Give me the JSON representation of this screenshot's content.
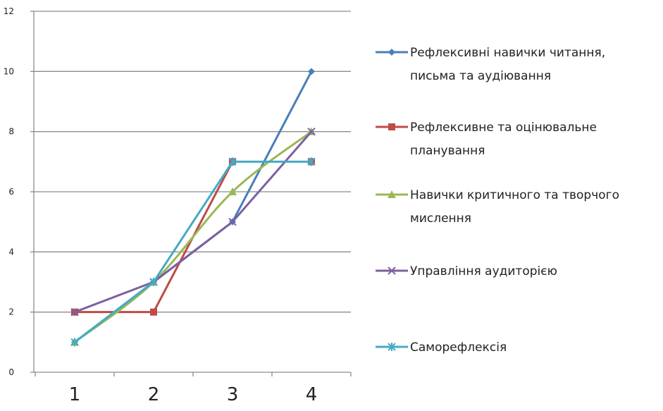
{
  "chart_data": {
    "type": "line",
    "title": "",
    "xlabel": "",
    "ylabel": "",
    "categories": [
      "1",
      "2",
      "3",
      "4"
    ],
    "ylim": [
      0,
      12
    ],
    "yticks": [
      "0",
      "2",
      "4",
      "6",
      "8",
      "10",
      "12"
    ],
    "grid": "horizontal",
    "legend_position": "right",
    "series": [
      {
        "name_lines": [
          "Рефлексивні навички читання,",
          "письма та аудіювання"
        ],
        "values": [
          1,
          3,
          5,
          10
        ],
        "color": "#4a7ebb",
        "marker": "diamond",
        "smooth": false
      },
      {
        "name_lines": [
          "Рефлексивне та оцінювальне",
          "планування"
        ],
        "values": [
          2,
          2,
          7,
          7
        ],
        "color": "#be4b48",
        "marker": "square",
        "smooth": false,
        "break_before_last": true
      },
      {
        "name_lines": [
          "Навички критичного та творчого",
          "мислення"
        ],
        "values": [
          1,
          3,
          6,
          8
        ],
        "color": "#98b954",
        "marker": "triangle",
        "smooth": true
      },
      {
        "name_lines": [
          "Управління аудиторією"
        ],
        "values": [
          2,
          3,
          5,
          8
        ],
        "color": "#7d60a0",
        "marker": "x",
        "smooth": false
      },
      {
        "name_lines": [
          "Саморефлексія"
        ],
        "values": [
          1,
          3,
          7,
          7
        ],
        "color": "#46aac5",
        "marker": "star",
        "smooth": false
      }
    ]
  }
}
